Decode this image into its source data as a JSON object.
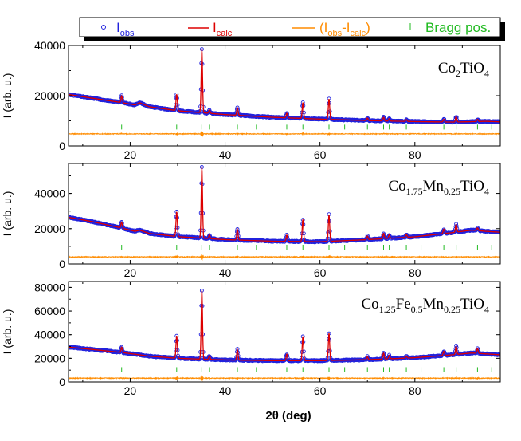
{
  "chart_data": {
    "type": "line",
    "xlabel": "2θ (deg)",
    "ylabel": "I (arb. u.)",
    "xlim": [
      7,
      98
    ],
    "x_ticks": [
      20,
      40,
      60,
      80
    ],
    "legend": {
      "placement": "top",
      "entries": [
        {
          "name": "I_obs",
          "main": "I",
          "sub": "obs",
          "color": "#2222dd",
          "marker": "circle"
        },
        {
          "name": "I_calc",
          "main": "I",
          "sub": "calc",
          "color": "#dd0000",
          "marker": "line"
        },
        {
          "name": "I_obs-I_calc",
          "main1": "(I",
          "sub1": "obs",
          "mid": "-I",
          "sub2": "calc",
          "end": ")",
          "color": "#ff8c00",
          "marker": "line"
        },
        {
          "name": "Bragg pos.",
          "text": "Bragg pos.",
          "color": "#22bb22",
          "marker": "tick"
        }
      ]
    },
    "colors": {
      "obs": "#2222dd",
      "calc": "#dd0000",
      "diff": "#ff8c00",
      "bragg": "#22bb22"
    },
    "panels": [
      {
        "composition": [
          {
            "t": "Co"
          },
          {
            "s": "2"
          },
          {
            "t": "TiO"
          },
          {
            "s": "4"
          }
        ],
        "ylim": [
          0,
          40000
        ],
        "y_ticks": [
          0,
          20000,
          40000
        ],
        "y_tick_labels": [
          "0",
          "20000",
          "40000"
        ],
        "background": [
          [
            7,
            20500
          ],
          [
            12,
            19000
          ],
          [
            18,
            17300
          ],
          [
            21,
            16300
          ],
          [
            22,
            17200
          ],
          [
            24,
            15600
          ],
          [
            30,
            14000
          ],
          [
            40,
            12500
          ],
          [
            50,
            11400
          ],
          [
            60,
            10700
          ],
          [
            70,
            10100
          ],
          [
            80,
            9700
          ],
          [
            88,
            9500
          ],
          [
            95,
            9800
          ],
          [
            98,
            9600
          ]
        ],
        "peaks": [
          [
            18.2,
            2700
          ],
          [
            29.8,
            6500
          ],
          [
            35.1,
            25200
          ],
          [
            36.7,
            1300
          ],
          [
            42.6,
            3000
          ],
          [
            53.0,
            1800
          ],
          [
            56.4,
            6300
          ],
          [
            61.9,
            8100
          ],
          [
            70.0,
            1000
          ],
          [
            73.4,
            1400
          ],
          [
            74.6,
            1000
          ],
          [
            78.2,
            700
          ],
          [
            86.1,
            1100
          ],
          [
            88.7,
            2200
          ],
          [
            93.2,
            900
          ]
        ],
        "diff_baseline": 4800,
        "bragg_level": 7500,
        "bragg_positions": [
          18.2,
          29.8,
          35.1,
          36.7,
          42.6,
          46.6,
          53.0,
          56.4,
          61.9,
          65.2,
          70.0,
          73.4,
          74.6,
          78.2,
          81.3,
          86.1,
          88.7,
          93.2,
          96.2
        ]
      },
      {
        "composition": [
          {
            "t": "Co"
          },
          {
            "s": "1.75"
          },
          {
            "t": "Mn"
          },
          {
            "s": "0.25"
          },
          {
            "t": "TiO"
          },
          {
            "s": "4"
          }
        ],
        "ylim": [
          0,
          57000
        ],
        "y_ticks": [
          0,
          20000,
          40000
        ],
        "y_tick_labels": [
          "0",
          "20000",
          "40000"
        ],
        "background": [
          [
            7,
            26500
          ],
          [
            12,
            24000
          ],
          [
            18,
            20500
          ],
          [
            21,
            18500
          ],
          [
            22,
            19200
          ],
          [
            24,
            17300
          ],
          [
            30,
            15500
          ],
          [
            40,
            13800
          ],
          [
            50,
            12900
          ],
          [
            60,
            12600
          ],
          [
            70,
            13800
          ],
          [
            80,
            15400
          ],
          [
            88,
            17800
          ],
          [
            92,
            19200
          ],
          [
            95,
            18500
          ],
          [
            98,
            18000
          ]
        ],
        "peaks": [
          [
            18.2,
            3300
          ],
          [
            29.8,
            14000
          ],
          [
            35.1,
            40000
          ],
          [
            36.7,
            2000
          ],
          [
            42.6,
            6000
          ],
          [
            53.0,
            3500
          ],
          [
            56.4,
            12500
          ],
          [
            61.9,
            15000
          ],
          [
            70.0,
            2000
          ],
          [
            73.4,
            3000
          ],
          [
            74.6,
            2000
          ],
          [
            78.2,
            1500
          ],
          [
            86.1,
            2500
          ],
          [
            88.7,
            4500
          ],
          [
            93.2,
            1500
          ]
        ],
        "diff_baseline": 4000,
        "bragg_level": 9500,
        "bragg_positions": [
          18.2,
          29.8,
          35.1,
          36.7,
          42.6,
          46.6,
          53.0,
          56.4,
          61.9,
          65.2,
          70.0,
          73.4,
          74.6,
          78.2,
          81.3,
          86.1,
          88.7,
          93.2,
          96.2
        ]
      },
      {
        "composition": [
          {
            "t": "Co"
          },
          {
            "s": "1.25"
          },
          {
            "t": "Fe"
          },
          {
            "s": "0.5"
          },
          {
            "t": "Mn"
          },
          {
            "s": "0.25"
          },
          {
            "t": "TiO"
          },
          {
            "s": "4"
          }
        ],
        "ylim": [
          0,
          85000
        ],
        "y_ticks": [
          0,
          20000,
          40000,
          60000,
          80000
        ],
        "y_tick_labels": [
          "0",
          "20000",
          "40000",
          "60000",
          "80000"
        ],
        "background": [
          [
            7,
            29500
          ],
          [
            12,
            27500
          ],
          [
            18,
            25000
          ],
          [
            21,
            23500
          ],
          [
            24,
            21800
          ],
          [
            30,
            20000
          ],
          [
            40,
            18600
          ],
          [
            50,
            18000
          ],
          [
            60,
            18000
          ],
          [
            70,
            18800
          ],
          [
            80,
            20500
          ],
          [
            88,
            23000
          ],
          [
            92,
            24500
          ],
          [
            98,
            23000
          ]
        ],
        "peaks": [
          [
            18.2,
            4500
          ],
          [
            29.8,
            19000
          ],
          [
            35.1,
            58000
          ],
          [
            36.7,
            3000
          ],
          [
            42.6,
            9000
          ],
          [
            53.0,
            5500
          ],
          [
            56.4,
            20500
          ],
          [
            61.9,
            23000
          ],
          [
            70.0,
            2500
          ],
          [
            73.4,
            5000
          ],
          [
            74.6,
            3000
          ],
          [
            78.2,
            1500
          ],
          [
            86.1,
            3500
          ],
          [
            88.7,
            7000
          ],
          [
            93.2,
            4000
          ]
        ],
        "diff_baseline": 3200,
        "bragg_level": 10500,
        "bragg_positions": [
          18.2,
          29.8,
          35.1,
          36.7,
          42.6,
          46.6,
          53.0,
          56.4,
          61.9,
          65.2,
          70.0,
          73.4,
          74.6,
          78.2,
          81.3,
          86.1,
          88.7,
          93.2,
          96.2
        ]
      }
    ]
  }
}
